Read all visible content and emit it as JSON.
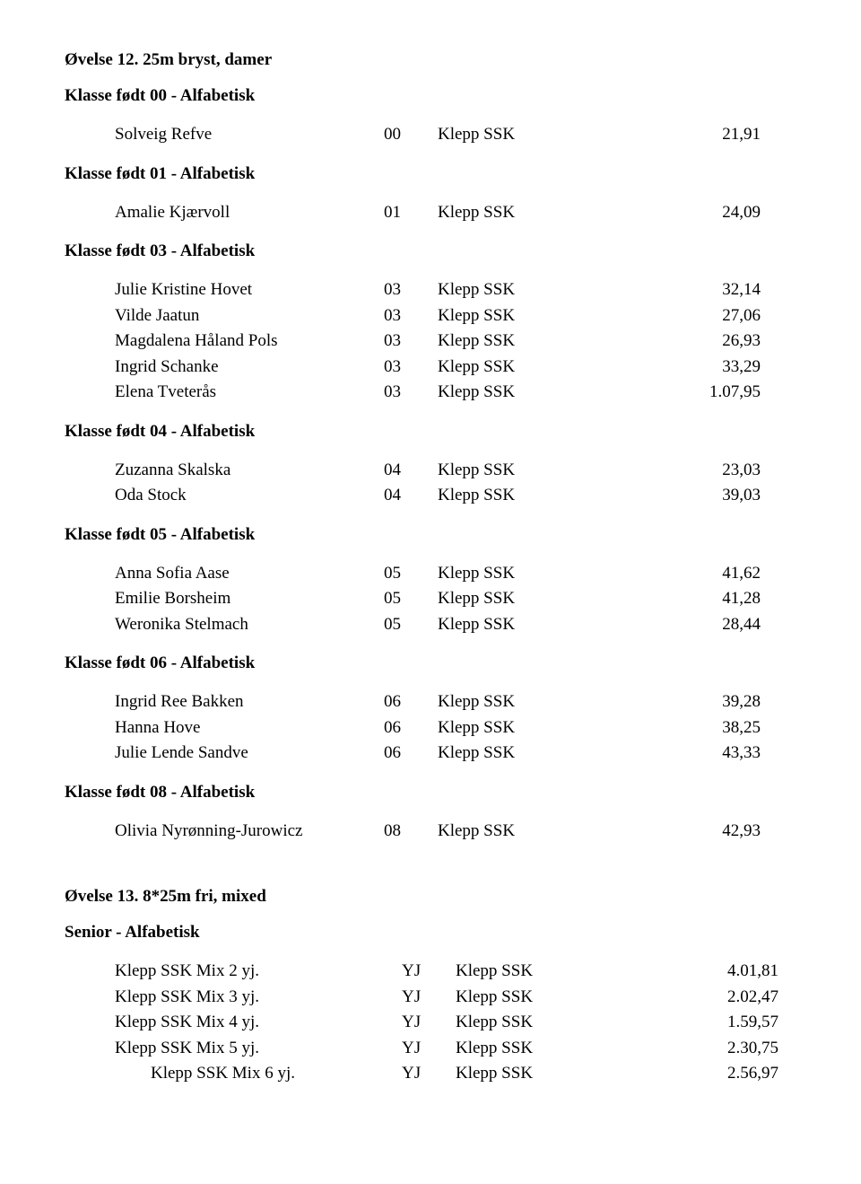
{
  "event12": {
    "title": "Øvelse 12. 25m bryst, damer",
    "classes": [
      {
        "header": "Klasse født 00 - Alfabetisk",
        "rows": [
          {
            "name": "Solveig Refve",
            "year": "00",
            "club": "Klepp SSK",
            "time": "21,91"
          }
        ]
      },
      {
        "header": "Klasse født 01 - Alfabetisk",
        "rows": [
          {
            "name": "Amalie Kjærvoll",
            "year": "01",
            "club": "Klepp SSK",
            "time": "24,09"
          }
        ]
      },
      {
        "header": "Klasse født 03 - Alfabetisk",
        "rows": [
          {
            "name": "Julie Kristine Hovet",
            "year": "03",
            "club": "Klepp SSK",
            "time": "32,14"
          },
          {
            "name": "Vilde Jaatun",
            "year": "03",
            "club": "Klepp SSK",
            "time": "27,06"
          },
          {
            "name": "Magdalena Håland Pols",
            "year": "03",
            "club": "Klepp SSK",
            "time": "26,93"
          },
          {
            "name": "Ingrid Schanke",
            "year": "03",
            "club": "Klepp SSK",
            "time": "33,29"
          },
          {
            "name": "Elena Tveterås",
            "year": "03",
            "club": "Klepp SSK",
            "time": "1.07,95"
          }
        ]
      },
      {
        "header": "Klasse født 04 - Alfabetisk",
        "rows": [
          {
            "name": "Zuzanna Skalska",
            "year": "04",
            "club": "Klepp SSK",
            "time": "23,03"
          },
          {
            "name": "Oda Stock",
            "year": "04",
            "club": "Klepp SSK",
            "time": "39,03"
          }
        ]
      },
      {
        "header": "Klasse født 05 - Alfabetisk",
        "rows": [
          {
            "name": "Anna Sofia Aase",
            "year": "05",
            "club": "Klepp SSK",
            "time": "41,62"
          },
          {
            "name": "Emilie Borsheim",
            "year": "05",
            "club": "Klepp SSK",
            "time": "41,28"
          },
          {
            "name": "Weronika Stelmach",
            "year": "05",
            "club": "Klepp SSK",
            "time": "28,44"
          }
        ]
      },
      {
        "header": "Klasse født 06 - Alfabetisk",
        "rows": [
          {
            "name": "Ingrid Ree Bakken",
            "year": "06",
            "club": "Klepp SSK",
            "time": "39,28"
          },
          {
            "name": "Hanna Hove",
            "year": "06",
            "club": "Klepp SSK",
            "time": "38,25"
          },
          {
            "name": "Julie Lende Sandve",
            "year": "06",
            "club": "Klepp SSK",
            "time": "43,33"
          }
        ]
      },
      {
        "header": "Klasse født 08 - Alfabetisk",
        "rows": [
          {
            "name": "Olivia Nyrønning-Jurowicz",
            "year": "08",
            "club": "Klepp SSK",
            "time": "42,93"
          }
        ]
      }
    ]
  },
  "event13": {
    "title": "Øvelse 13. 8*25m fri, mixed",
    "senior_header": "Senior - Alfabetisk",
    "rows": [
      {
        "name": "Klepp SSK Mix 2 yj.",
        "year": "YJ",
        "club": "Klepp SSK",
        "time": "4.01,81",
        "indent": false
      },
      {
        "name": "Klepp SSK Mix 3 yj.",
        "year": "YJ",
        "club": "Klepp SSK",
        "time": "2.02,47",
        "indent": false
      },
      {
        "name": "Klepp SSK Mix 4 yj.",
        "year": "YJ",
        "club": "Klepp SSK",
        "time": "1.59,57",
        "indent": false
      },
      {
        "name": "Klepp SSK Mix 5 yj.",
        "year": "YJ",
        "club": "Klepp SSK",
        "time": "2.30,75",
        "indent": false
      },
      {
        "name": "Klepp SSK Mix 6 yj.",
        "year": "YJ",
        "club": "Klepp SSK",
        "time": "2.56,97",
        "indent": true
      }
    ]
  }
}
